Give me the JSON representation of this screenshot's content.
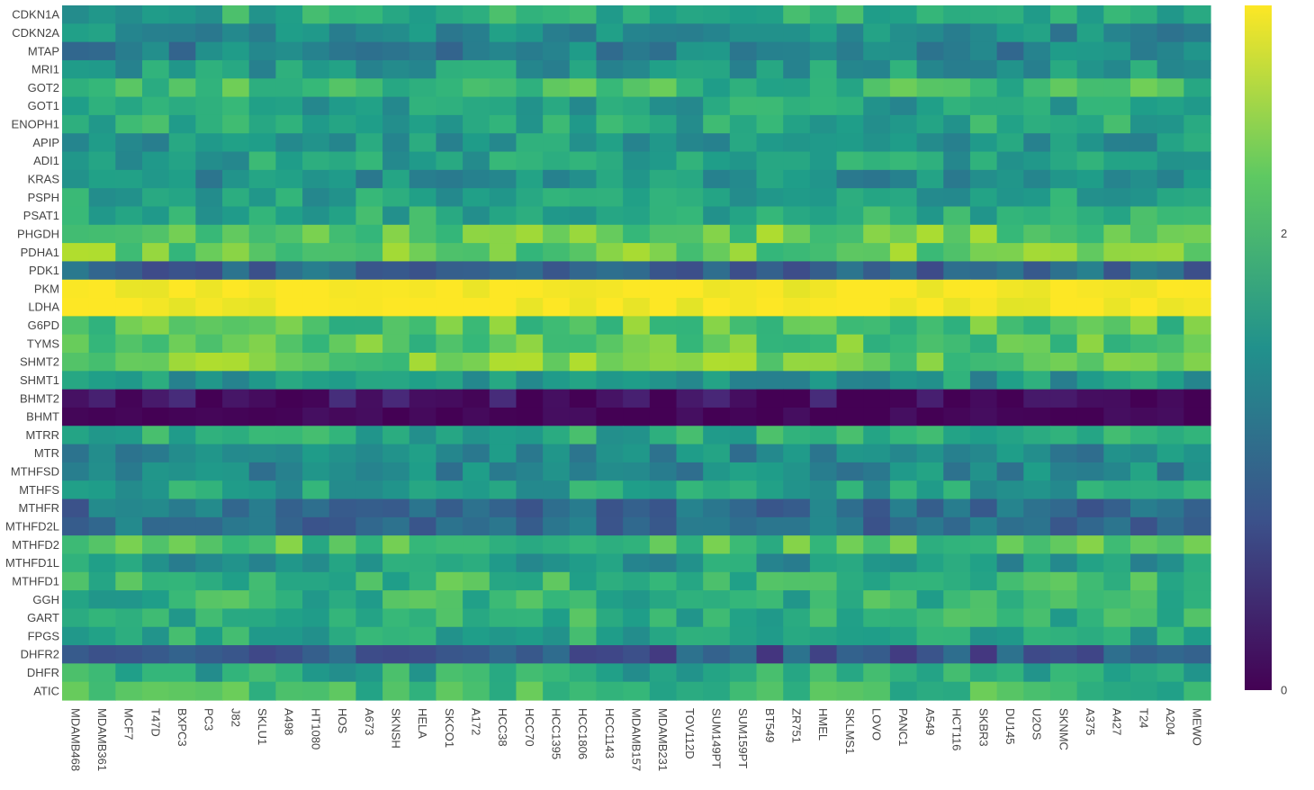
{
  "chart_data": {
    "type": "heatmap",
    "title": "",
    "xlabel": "",
    "ylabel": "",
    "colorscale": "viridis",
    "zmin": 0,
    "zmax": 3,
    "colorbar": {
      "ticks": [
        0,
        2
      ],
      "tick_labels": [
        "0",
        "2"
      ]
    },
    "x": [
      "MDAMB468",
      "MDAMB361",
      "MCF7",
      "T47D",
      "BXPC3",
      "PC3",
      "J82",
      "SKLU1",
      "A498",
      "HT1080",
      "HOS",
      "A673",
      "SKNSH",
      "HELA",
      "SKCO1",
      "A172",
      "HCC38",
      "HCC70",
      "HCC1395",
      "HCC1806",
      "HCC1143",
      "MDAMB157",
      "MDAMB231",
      "TOV112D",
      "SUM149PT",
      "SUM159PT",
      "BT549",
      "ZR751",
      "HMEL",
      "SKLMS1",
      "LOVO",
      "PANC1",
      "A549",
      "HCT116",
      "SKBR3",
      "DU145",
      "U2OS",
      "SKNMC",
      "A375",
      "A427",
      "T24",
      "A204",
      "MEWO"
    ],
    "y": [
      "CDKN1A",
      "CDKN2A",
      "MTAP",
      "MRI1",
      "GOT2",
      "GOT1",
      "ENOPH1",
      "APIP",
      "ADI1",
      "KRAS",
      "PSPH",
      "PSAT1",
      "PHGDH",
      "PDHA1",
      "PDK1",
      "PKM",
      "LDHA",
      "G6PD",
      "TYMS",
      "SHMT2",
      "SHMT1",
      "BHMT2",
      "BHMT",
      "MTRR",
      "MTR",
      "MTHFSD",
      "MTHFS",
      "MTHFR",
      "MTHFD2L",
      "MTHFD2",
      "MTHFD1L",
      "MTHFD1",
      "GGH",
      "GART",
      "FPGS",
      "DHFR2",
      "DHFR",
      "ATIC"
    ],
    "z_approx_row_levels": {
      "CDKN1A": 1.8,
      "CDKN2A": 1.4,
      "MTAP": 1.3,
      "MRI1": 1.6,
      "GOT2": 2.0,
      "GOT1": 1.7,
      "ENOPH1": 1.8,
      "APIP": 1.6,
      "ADI1": 1.7,
      "KRAS": 1.5,
      "PSPH": 1.7,
      "PSAT1": 1.8,
      "PHGDH": 2.3,
      "PDHA1": 2.3,
      "PDK1": 1.0,
      "PKM": 3.0,
      "LDHA": 3.0,
      "G6PD": 2.2,
      "TYMS": 2.2,
      "SHMT2": 2.3,
      "SHMT1": 1.6,
      "BHMT2": 0.1,
      "BHMT": 0.0,
      "MTRR": 1.8,
      "MTR": 1.4,
      "MTHFSD": 1.4,
      "MTHFS": 1.7,
      "MTHFR": 1.1,
      "MTHFD2L": 1.1,
      "MTHFD2": 2.1,
      "MTHFD1L": 1.6,
      "MTHFD1": 2.0,
      "GGH": 1.9,
      "GART": 1.9,
      "FPGS": 1.8,
      "DHFR2": 0.8,
      "DHFR": 1.8,
      "ATIC": 2.0
    }
  }
}
